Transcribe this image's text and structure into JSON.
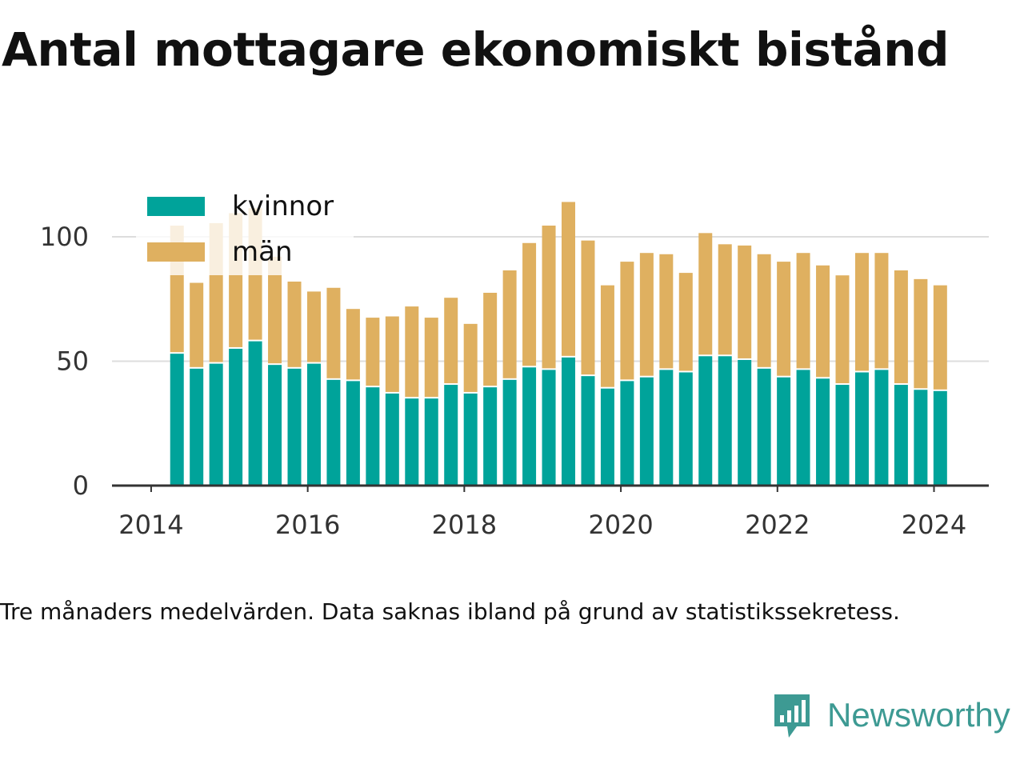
{
  "colors": {
    "kvinnor": "#00a39a",
    "man": "#dfb060",
    "grid": "#dddddd",
    "axis": "#333333",
    "text": "#111111",
    "brand": "#3d9a93"
  },
  "chart_data": {
    "type": "bar",
    "stacked": true,
    "title": "Antal mottagare ekonomiskt bistånd",
    "xlabel": "",
    "ylabel": "",
    "x": [
      2014.33,
      2014.58,
      2014.83,
      2015.08,
      2015.33,
      2015.58,
      2015.83,
      2016.08,
      2016.33,
      2016.58,
      2016.83,
      2017.08,
      2017.33,
      2017.58,
      2017.83,
      2018.08,
      2018.33,
      2018.58,
      2018.83,
      2019.08,
      2019.33,
      2019.58,
      2019.83,
      2020.08,
      2020.33,
      2020.58,
      2020.83,
      2021.08,
      2021.33,
      2021.58,
      2021.83,
      2022.08,
      2022.33,
      2022.58,
      2022.83,
      2023.08,
      2023.33,
      2023.58,
      2023.83,
      2024.08
    ],
    "series": [
      {
        "name": "kvinnor",
        "color": "#00a39a",
        "values": [
          53,
          47,
          49,
          55,
          58,
          48.5,
          47,
          49,
          42.5,
          42,
          39.5,
          37,
          35,
          35,
          40.5,
          37,
          39.5,
          42.5,
          47.5,
          46.5,
          51.5,
          44,
          39,
          42,
          43.5,
          46.5,
          45.5,
          52,
          52,
          50.5,
          47,
          43.5,
          46.5,
          43,
          40.5,
          45.5,
          46.5,
          40.5,
          38.5,
          38
        ]
      },
      {
        "name": "män",
        "color": "#dfb060",
        "values": [
          51.5,
          34.5,
          56.5,
          54.5,
          53.5,
          43.5,
          35,
          29,
          37,
          29,
          28,
          31,
          37,
          32.5,
          35,
          28,
          38,
          44,
          50,
          58,
          62.5,
          54.5,
          41.5,
          48,
          50,
          46.5,
          40,
          49.5,
          45,
          46,
          46,
          46.5,
          47,
          45.5,
          44,
          48,
          47,
          46,
          44.5,
          42.5
        ]
      }
    ],
    "ylim": [
      0,
      120
    ],
    "yticks": [
      "0",
      "50",
      "100"
    ],
    "ytick_values": [
      0,
      50,
      100
    ],
    "xlim": [
      2013.5,
      2024.7
    ],
    "xticks": [
      "2014",
      "2016",
      "2018",
      "2020",
      "2022",
      "2024"
    ],
    "xtick_values": [
      2014,
      2016,
      2018,
      2020,
      2022,
      2024
    ],
    "grid": true,
    "legend_position": "top-left",
    "legend": [
      "kvinnor",
      "män"
    ]
  },
  "caption": "Tre månaders medelvärden. Data saknas ibland på grund av statistikssekretess.",
  "brand": {
    "name": "Newsworthy",
    "icon": "newsworthy-logo-icon"
  }
}
